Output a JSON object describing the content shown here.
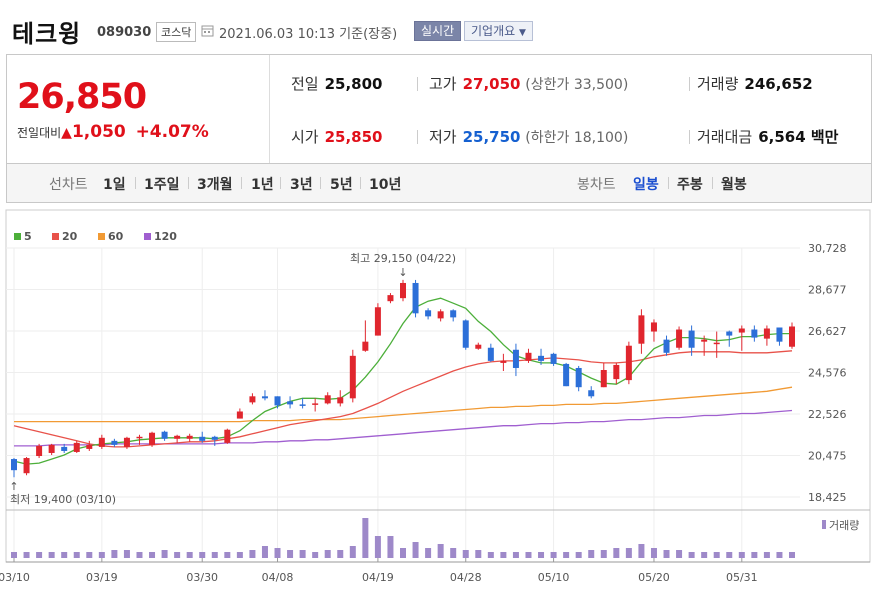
{
  "header": {
    "name": "테크윙",
    "code": "089030",
    "market": "코스닥",
    "datetime": "2021.06.03 10:13",
    "basis": "기준(장중)",
    "realtime_label": "실시간",
    "overview_label": "기업개요"
  },
  "quote": {
    "price": "26,850",
    "change_label": "전일대비",
    "change": "1,050",
    "change_pct": "+4.07%",
    "prev_label": "전일",
    "prev": "25,800",
    "high_label": "고가",
    "high": "27,050",
    "upper_limit": "(상한가 33,500)",
    "volume_label": "거래량",
    "volume": "246,652",
    "open_label": "시가",
    "open": "25,850",
    "low_label": "저가",
    "low": "25,750",
    "lower_limit": "(하한가 18,100)",
    "amount_label": "거래대금",
    "amount": "6,564 백만"
  },
  "tabs": {
    "line_label": "선차트",
    "line_periods": [
      "1일",
      "1주일",
      "3개월",
      "1년",
      "3년",
      "5년",
      "10년"
    ],
    "candle_label": "봉차트",
    "candle_periods": [
      "일봉",
      "주봉",
      "월봉"
    ],
    "candle_selected": "일봉"
  },
  "chart_data": {
    "type": "candlestick",
    "legend": [
      {
        "name": "5",
        "color": "#4caf3a"
      },
      {
        "name": "20",
        "color": "#e8524a"
      },
      {
        "name": "60",
        "color": "#f19a34"
      },
      {
        "name": "120",
        "color": "#a05fd0"
      }
    ],
    "y_ticks": [
      "30,728",
      "28,677",
      "26,627",
      "24,576",
      "22,526",
      "20,475",
      "18,425"
    ],
    "ylim": [
      18425,
      30728
    ],
    "x_ticks": [
      "03/10",
      "03/19",
      "03/30",
      "04/08",
      "04/19",
      "04/28",
      "05/10",
      "05/20",
      "05/31"
    ],
    "annotation_high": "최고 29,150 (04/22)",
    "annotation_low": "최저 19,400 (03/10)",
    "volume_label": "거래량",
    "candles": [
      [
        20300,
        19750,
        20350,
        19400
      ],
      [
        19600,
        20350,
        20400,
        19500
      ],
      [
        20450,
        20950,
        21050,
        20350
      ],
      [
        20600,
        21000,
        21050,
        20500
      ],
      [
        20900,
        20700,
        21050,
        20600
      ],
      [
        20650,
        21100,
        21200,
        20600
      ],
      [
        20800,
        21000,
        21200,
        20700
      ],
      [
        20900,
        21350,
        21500,
        20800
      ],
      [
        21200,
        21000,
        21300,
        20900
      ],
      [
        20900,
        21350,
        21400,
        20800
      ],
      [
        21350,
        21400,
        21500,
        21000
      ],
      [
        21000,
        21600,
        21650,
        20900
      ],
      [
        21650,
        21300,
        21700,
        21200
      ],
      [
        21300,
        21450,
        21500,
        21100
      ],
      [
        21300,
        21450,
        21550,
        21150
      ],
      [
        21400,
        21200,
        21650,
        21100
      ],
      [
        21400,
        21250,
        21450,
        20950
      ],
      [
        21100,
        21750,
        21800,
        21050
      ],
      [
        22300,
        22650,
        22800,
        22300
      ],
      [
        23100,
        23400,
        23550,
        23000
      ],
      [
        23400,
        23300,
        23700,
        23200
      ],
      [
        23400,
        22950,
        23400,
        22800
      ],
      [
        23150,
        23000,
        23400,
        22800
      ],
      [
        23000,
        22950,
        23300,
        22800
      ],
      [
        23050,
        23050,
        23300,
        22650
      ],
      [
        23050,
        23450,
        23600,
        23000
      ],
      [
        23050,
        23350,
        23700,
        22900
      ],
      [
        23300,
        25400,
        25700,
        23100
      ],
      [
        25650,
        26100,
        27150,
        25600
      ],
      [
        26400,
        27800,
        28000,
        26400
      ],
      [
        28100,
        28400,
        28500,
        28000
      ],
      [
        28250,
        29000,
        29150,
        28100
      ],
      [
        29000,
        27500,
        29150,
        27300
      ],
      [
        27650,
        27350,
        27750,
        27200
      ],
      [
        27250,
        27600,
        27700,
        27100
      ],
      [
        27650,
        27300,
        27700,
        27100
      ],
      [
        27150,
        25800,
        27200,
        25700
      ],
      [
        25750,
        25950,
        26050,
        25700
      ],
      [
        25800,
        25150,
        26000,
        25100
      ],
      [
        25050,
        25150,
        25500,
        24650
      ],
      [
        25700,
        24800,
        26000,
        24400
      ],
      [
        25150,
        25550,
        25750,
        25050
      ],
      [
        25400,
        25150,
        25750,
        24950
      ],
      [
        25500,
        25000,
        25550,
        24900
      ],
      [
        25000,
        23900,
        25050,
        23900
      ],
      [
        24800,
        23850,
        24900,
        23650
      ],
      [
        23700,
        23400,
        23900,
        23300
      ],
      [
        23850,
        24700,
        25050,
        23850
      ],
      [
        24250,
        24950,
        25050,
        24000
      ],
      [
        24200,
        25900,
        26100,
        24000
      ],
      [
        26000,
        27400,
        27700,
        25500
      ],
      [
        26600,
        27050,
        27200,
        26100
      ],
      [
        26200,
        25550,
        26400,
        25400
      ],
      [
        25800,
        26700,
        26850,
        25700
      ],
      [
        26650,
        25800,
        26900,
        25400
      ],
      [
        26100,
        26200,
        26400,
        25400
      ],
      [
        26050,
        26050,
        26600,
        25300
      ],
      [
        26600,
        26400,
        26650,
        25850
      ],
      [
        26550,
        26750,
        26900,
        25650
      ],
      [
        26700,
        26300,
        26900,
        26100
      ],
      [
        26250,
        26750,
        26900,
        25900
      ],
      [
        26800,
        26100,
        26800,
        25900
      ],
      [
        25850,
        26850,
        27050,
        25750
      ]
    ],
    "ma5": [
      20200,
      20050,
      20100,
      20300,
      20500,
      20800,
      20950,
      21050,
      21100,
      21150,
      21250,
      21300,
      21350,
      21350,
      21350,
      21350,
      21300,
      21400,
      21700,
      22200,
      22650,
      22900,
      23150,
      23300,
      23300,
      23250,
      23300,
      23700,
      24350,
      25100,
      26000,
      27000,
      27800,
      28100,
      28250,
      28000,
      27750,
      27100,
      26600,
      25950,
      25400,
      25200,
      25050,
      25050,
      24900,
      24600,
      24300,
      24050,
      24000,
      24350,
      25100,
      25750,
      26050,
      26300,
      26300,
      26250,
      26150,
      26200,
      26350,
      26350,
      26450,
      26500,
      26500
    ],
    "ma20": [
      21950,
      21800,
      21650,
      21500,
      21350,
      21200,
      21050,
      20950,
      20900,
      20900,
      20950,
      21000,
      21050,
      21100,
      21150,
      21150,
      21200,
      21300,
      21400,
      21550,
      21700,
      21850,
      22000,
      22100,
      22200,
      22300,
      22400,
      22550,
      22800,
      23050,
      23350,
      23650,
      23900,
      24150,
      24400,
      24650,
      24850,
      25000,
      25100,
      25150,
      25150,
      25200,
      25250,
      25300,
      25250,
      25200,
      25100,
      25050,
      25050,
      25100,
      25200,
      25350,
      25450,
      25550,
      25600,
      25600,
      25600,
      25600,
      25550,
      25550,
      25550,
      25600,
      25650
    ],
    "ma60": [
      22150,
      22150,
      22150,
      22150,
      22150,
      22150,
      22150,
      22150,
      22150,
      22150,
      22150,
      22150,
      22150,
      22150,
      22150,
      22150,
      22150,
      22150,
      22150,
      22200,
      22200,
      22200,
      22200,
      22250,
      22250,
      22250,
      22250,
      22300,
      22350,
      22400,
      22450,
      22500,
      22550,
      22600,
      22650,
      22700,
      22750,
      22800,
      22850,
      22850,
      22900,
      22900,
      22950,
      22950,
      23000,
      23000,
      23000,
      23050,
      23050,
      23100,
      23150,
      23200,
      23250,
      23300,
      23350,
      23400,
      23450,
      23500,
      23550,
      23600,
      23650,
      23750,
      23850
    ],
    "ma120": [
      20950,
      20950,
      20950,
      21000,
      21000,
      21000,
      21000,
      21000,
      21050,
      21050,
      21050,
      21050,
      21050,
      21050,
      21050,
      21050,
      21050,
      21100,
      21100,
      21100,
      21150,
      21150,
      21200,
      21200,
      21250,
      21250,
      21300,
      21350,
      21400,
      21450,
      21500,
      21550,
      21600,
      21650,
      21700,
      21750,
      21800,
      21850,
      21900,
      21950,
      21950,
      22000,
      22050,
      22050,
      22100,
      22100,
      22150,
      22150,
      22200,
      22250,
      22250,
      22300,
      22350,
      22350,
      22400,
      22450,
      22450,
      22500,
      22550,
      22550,
      22600,
      22650,
      22700
    ],
    "volume": [
      3,
      3,
      3,
      3,
      3,
      3,
      3,
      3,
      4,
      4,
      3,
      3,
      4,
      3,
      3,
      3,
      3,
      3,
      3,
      4,
      6,
      5,
      4,
      4,
      3,
      4,
      4,
      6,
      20,
      11,
      11,
      5,
      8,
      5,
      7,
      5,
      4,
      4,
      3,
      3,
      3,
      3,
      3,
      3,
      3,
      3,
      4,
      4,
      5,
      5,
      7,
      5,
      4,
      4,
      3,
      3,
      3,
      3,
      3,
      3,
      3,
      3,
      3
    ]
  }
}
